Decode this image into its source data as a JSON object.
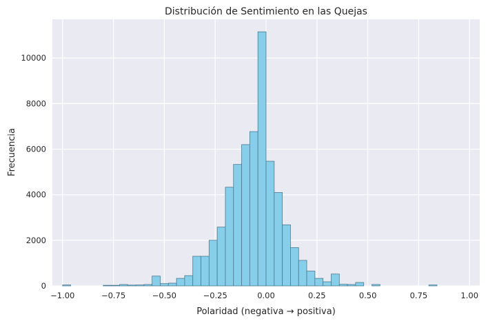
{
  "chart_data": {
    "type": "bar",
    "title": "Distribución de Sentimiento en las Quejas",
    "xlabel": "Polaridad (negativa → positiva)",
    "ylabel": "Frecuencia",
    "xlim": [
      -1.05,
      1.05
    ],
    "ylim": [
      0,
      11700
    ],
    "xticks": [
      -1.0,
      -0.75,
      -0.5,
      -0.25,
      0.0,
      0.25,
      0.5,
      0.75,
      1.0
    ],
    "xtick_labels": [
      "−1.00",
      "−0.75",
      "−0.50",
      "−0.25",
      "0.00",
      "0.25",
      "0.50",
      "0.75",
      "1.00"
    ],
    "yticks": [
      0,
      2000,
      4000,
      6000,
      8000,
      10000
    ],
    "ytick_labels": [
      "0",
      "2000",
      "4000",
      "6000",
      "8000",
      "10000"
    ],
    "grid": true,
    "bin_width": 0.04,
    "bin_edges_start": -1.0,
    "bar_color": "#87ceeb",
    "edge_color": "#4a7a90",
    "background_color": "#eaeaf2",
    "grid_color": "#ffffff",
    "values": [
      40,
      0,
      0,
      0,
      0,
      25,
      25,
      60,
      35,
      40,
      60,
      430,
      100,
      120,
      330,
      450,
      1300,
      1300,
      2000,
      2580,
      4330,
      5330,
      6200,
      6770,
      11150,
      5470,
      4100,
      2680,
      1680,
      1120,
      650,
      330,
      180,
      520,
      70,
      60,
      150,
      0,
      60,
      0,
      0,
      0,
      0,
      0,
      0,
      40,
      0,
      0,
      0,
      0
    ]
  }
}
